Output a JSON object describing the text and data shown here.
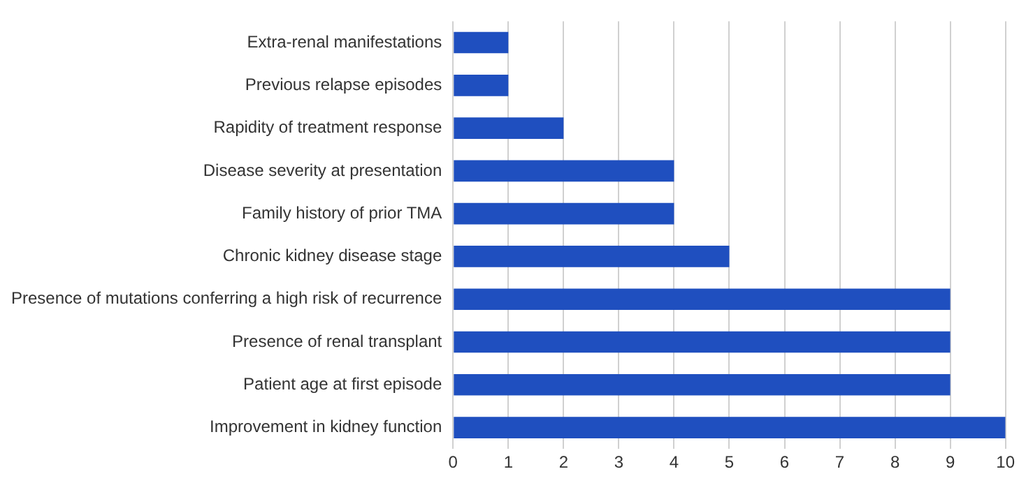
{
  "chart_data": {
    "type": "bar",
    "orientation": "horizontal",
    "categories": [
      "Extra-renal manifestations",
      "Previous relapse episodes",
      "Rapidity of treatment response",
      "Disease severity at presentation",
      "Family history of prior TMA",
      "Chronic kidney disease stage",
      "Presence of mutations conferring a high risk of recurrence",
      "Presence of renal transplant",
      "Patient age at first episode",
      "Improvement in kidney function"
    ],
    "values": [
      1,
      1,
      2,
      4,
      4,
      5,
      9,
      9,
      9,
      10
    ],
    "color": "#1f4fbf",
    "xlim": [
      0,
      10
    ],
    "xticks": [
      0,
      1,
      2,
      3,
      4,
      5,
      6,
      7,
      8,
      9,
      10
    ],
    "grid": "x",
    "legend": false
  }
}
